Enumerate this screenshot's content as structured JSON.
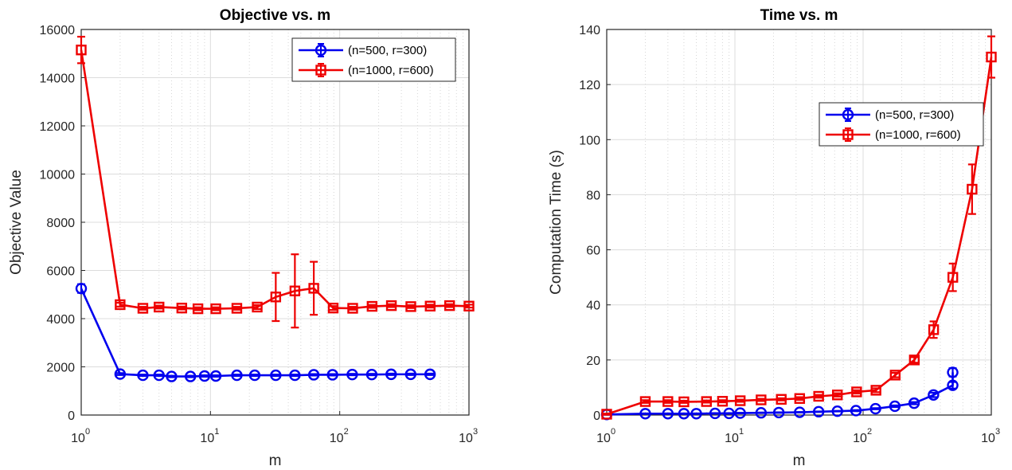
{
  "chart_data": [
    {
      "type": "line",
      "title": "Objective vs. m",
      "xlabel": "m",
      "ylabel": "Objective Value",
      "xscale": "log",
      "xlim": [
        1,
        1000
      ],
      "ylim": [
        0,
        16000
      ],
      "xticks": [
        1,
        10,
        100,
        1000
      ],
      "yticks": [
        0,
        2000,
        4000,
        6000,
        8000,
        10000,
        12000,
        14000,
        16000
      ],
      "ytick_labels": [
        "0",
        "2000",
        "4000",
        "6000",
        "8000",
        "10000",
        "12000",
        "14000",
        "16000"
      ],
      "legend_position": "top-right",
      "grid": true,
      "series": [
        {
          "name": "(n=500, r=300)",
          "color": "#0000ee",
          "marker": "circle",
          "x": [
            1,
            2,
            3,
            4,
            5,
            7,
            9,
            11,
            16,
            22,
            32,
            45,
            63,
            88,
            125,
            177,
            250,
            354,
            500
          ],
          "y": [
            5250,
            1700,
            1650,
            1650,
            1600,
            1600,
            1620,
            1620,
            1650,
            1650,
            1650,
            1650,
            1670,
            1670,
            1680,
            1680,
            1690,
            1690,
            1690
          ],
          "err": [
            180,
            40,
            30,
            30,
            30,
            30,
            30,
            30,
            30,
            30,
            30,
            30,
            30,
            30,
            30,
            30,
            30,
            30,
            30
          ]
        },
        {
          "name": "(n=1000, r=600)",
          "color": "#ee0000",
          "marker": "square",
          "x": [
            1,
            2,
            3,
            4,
            6,
            8,
            11,
            16,
            23,
            32,
            45,
            63,
            89,
            126,
            178,
            251,
            355,
            501,
            708,
            1000
          ],
          "y": [
            15150,
            4580,
            4430,
            4480,
            4440,
            4410,
            4410,
            4430,
            4480,
            4900,
            5150,
            5260,
            4440,
            4430,
            4510,
            4540,
            4500,
            4520,
            4540,
            4520
          ],
          "err": [
            550,
            80,
            60,
            60,
            60,
            60,
            60,
            60,
            80,
            1000,
            1520,
            1100,
            80,
            60,
            60,
            60,
            60,
            60,
            60,
            60
          ]
        }
      ]
    },
    {
      "type": "line",
      "title": "Time vs. m",
      "xlabel": "m",
      "ylabel": "Computation Time (s)",
      "xscale": "log",
      "xlim": [
        1,
        1000
      ],
      "ylim": [
        0,
        140
      ],
      "xticks": [
        1,
        10,
        100,
        1000
      ],
      "yticks": [
        0,
        20,
        40,
        60,
        80,
        100,
        120,
        140
      ],
      "ytick_labels": [
        "0",
        "20",
        "40",
        "60",
        "80",
        "100",
        "120",
        "140"
      ],
      "legend_position": "upper-right",
      "grid": true,
      "series": [
        {
          "name": "(n=500, r=300)",
          "color": "#0000ee",
          "marker": "circle",
          "x": [
            1,
            2,
            3,
            4,
            5,
            7,
            9,
            11,
            16,
            22,
            32,
            45,
            63,
            88,
            125,
            177,
            250,
            354,
            500
          ],
          "y": [
            0.2,
            0.5,
            0.5,
            0.5,
            0.5,
            0.6,
            0.6,
            0.7,
            0.8,
            0.9,
            1.0,
            1.2,
            1.4,
            1.6,
            2.3,
            3.2,
            4.3,
            7.3,
            10.8
          ],
          "err": [
            0.1,
            0.1,
            0.1,
            0.1,
            0.1,
            0.1,
            0.1,
            0.1,
            0.1,
            0.1,
            0.1,
            0.1,
            0.1,
            0.2,
            0.2,
            0.3,
            0.4,
            0.8,
            1.2
          ],
          "extra_point": {
            "x": 500,
            "y": 15.5,
            "err": 1.5
          }
        },
        {
          "name": "(n=1000, r=600)",
          "color": "#ee0000",
          "marker": "square",
          "x": [
            1,
            2,
            3,
            4,
            6,
            8,
            11,
            16,
            23,
            32,
            45,
            63,
            89,
            126,
            178,
            251,
            355,
            501,
            708,
            1000
          ],
          "y": [
            0.3,
            4.9,
            4.9,
            4.8,
            4.9,
            5.0,
            5.2,
            5.5,
            5.7,
            6.0,
            6.8,
            7.3,
            8.4,
            9.0,
            14.5,
            20.0,
            31.0,
            50.0,
            82.0,
            130.0
          ],
          "err": [
            0.2,
            0.5,
            0.5,
            0.4,
            0.4,
            0.4,
            0.4,
            0.4,
            0.4,
            0.5,
            0.5,
            0.6,
            0.6,
            0.7,
            0.8,
            1.0,
            3.0,
            5.0,
            9.0,
            7.5
          ]
        }
      ]
    }
  ]
}
